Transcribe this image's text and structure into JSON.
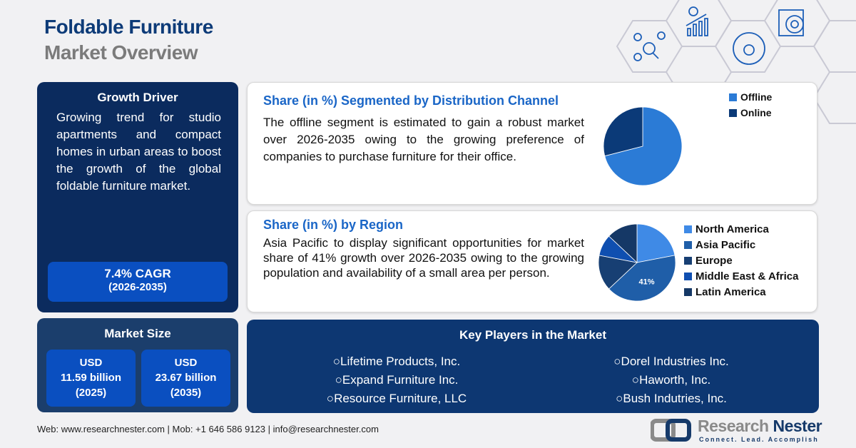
{
  "header": {
    "title_line1": "Foldable Furniture",
    "title_line2": "Market Overview"
  },
  "growth_driver": {
    "title": "Growth Driver",
    "text": "Growing trend for studio apartments and compact homes in urban areas to boost the growth of the global foldable furniture market.",
    "cagr": "7.4% CAGR",
    "cagr_period": "(2026-2035)"
  },
  "market_size": {
    "title": "Market Size",
    "values": [
      {
        "currency": "USD",
        "amount": "11.59 billion",
        "year": "(2025)"
      },
      {
        "currency": "USD",
        "amount": "23.67 billion",
        "year": "(2035)"
      }
    ]
  },
  "distribution": {
    "title": "Share (in %) Segmented by Distribution Channel",
    "text": "The offline segment is estimated to gain a robust market over 2026-2035 owing to the growing preference of companies to purchase furniture for their office."
  },
  "region": {
    "title": "Share (in %) by Region",
    "text": "Asia Pacific to display significant opportunities for market share of 41% growth over 2026-2035 owing to the growing population and availability of a small area per person."
  },
  "chart_data": [
    {
      "type": "pie",
      "categories": [
        "Offline",
        "Online"
      ],
      "values": [
        71,
        29
      ],
      "colors": [
        "#2b7bd6",
        "#0b3a78"
      ],
      "legend": "right"
    },
    {
      "type": "pie",
      "categories": [
        "North America",
        "Asia Pacific",
        "Europe",
        "Middle East & Africa",
        "Latin America"
      ],
      "values": [
        22,
        41,
        15,
        9,
        13
      ],
      "data_labels": [
        "",
        "41%",
        "",
        "",
        ""
      ],
      "colors": [
        "#3f8ae6",
        "#1f5ea8",
        "#173f73",
        "#0f4fb0",
        "#153866"
      ],
      "legend": "right"
    }
  ],
  "key_players": {
    "title": "Key Players in the Market",
    "left": [
      "Lifetime Products, Inc.",
      "Expand Furniture Inc.",
      "Resource Furniture, LLC"
    ],
    "right": [
      "Dorel Industries Inc.",
      "Haworth, Inc.",
      "Bush Indutries, Inc."
    ],
    "bullet": "○"
  },
  "footer": {
    "contact": "Web: www.researchnester.com | Mob: +1 646 586 9123 | info@researchnester.com"
  },
  "logo": {
    "name_part1": "Research",
    "name_part2": "Nester",
    "tagline": "Connect. Lead. Accomplish"
  }
}
